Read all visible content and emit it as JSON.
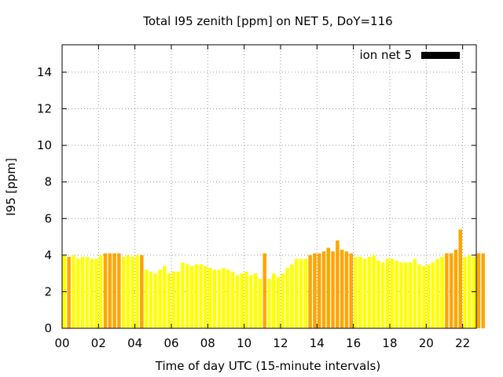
{
  "chart_data": {
    "type": "bar",
    "title": "Total I95 zenith [ppm] on NET 5, DoY=116",
    "xlabel": "Time of day UTC (15-minute intervals)",
    "ylabel": "I95 [ppm]",
    "ylim": [
      0,
      15.5
    ],
    "xlim": [
      0,
      22.75
    ],
    "x_ticks": [
      {
        "value": 0,
        "label": "00"
      },
      {
        "value": 2,
        "label": "02"
      },
      {
        "value": 4,
        "label": "04"
      },
      {
        "value": 6,
        "label": "06"
      },
      {
        "value": 8,
        "label": "08"
      },
      {
        "value": 10,
        "label": "10"
      },
      {
        "value": 12,
        "label": "12"
      },
      {
        "value": 14,
        "label": "14"
      },
      {
        "value": 16,
        "label": "16"
      },
      {
        "value": 18,
        "label": "18"
      },
      {
        "value": 20,
        "label": "20"
      },
      {
        "value": 22,
        "label": "22"
      }
    ],
    "y_ticks": [
      {
        "value": 0,
        "label": "0"
      },
      {
        "value": 2,
        "label": "2"
      },
      {
        "value": 4,
        "label": "4"
      },
      {
        "value": 6,
        "label": "6"
      },
      {
        "value": 8,
        "label": "8"
      },
      {
        "value": 10,
        "label": "10"
      },
      {
        "value": 12,
        "label": "12"
      },
      {
        "value": 14,
        "label": "14"
      }
    ],
    "grid": true,
    "legend": {
      "position": "top-right",
      "label": "ion net 5",
      "color": "#000000"
    },
    "colors": {
      "low": "#ffff00",
      "high": "#ffa500"
    },
    "interval_hours": 0.25,
    "values": [
      4.0,
      3.9,
      4.0,
      3.8,
      3.9,
      3.9,
      3.8,
      3.8,
      4.0,
      4.1,
      4.1,
      4.1,
      4.1,
      3.9,
      4.0,
      3.9,
      4.0,
      4.0,
      3.2,
      3.1,
      3.0,
      3.2,
      3.4,
      3.0,
      3.1,
      3.1,
      3.6,
      3.5,
      3.4,
      3.5,
      3.5,
      3.4,
      3.3,
      3.2,
      3.2,
      3.3,
      3.2,
      3.1,
      2.9,
      3.0,
      3.1,
      2.9,
      3.0,
      2.7,
      4.1,
      2.7,
      3.0,
      2.8,
      3.0,
      3.3,
      3.5,
      3.8,
      3.8,
      3.8,
      4.0,
      4.1,
      4.1,
      4.2,
      4.4,
      4.2,
      4.8,
      4.3,
      4.2,
      4.1,
      3.9,
      3.9,
      3.8,
      3.9,
      4.0,
      3.7,
      3.6,
      3.8,
      3.8,
      3.7,
      3.6,
      3.6,
      3.6,
      3.8,
      3.5,
      3.4,
      3.5,
      3.6,
      3.8,
      3.9,
      4.1,
      4.1,
      4.3,
      5.4,
      3.9,
      4.0,
      3.9,
      4.1,
      4.1
    ],
    "highlight": [
      false,
      true,
      false,
      false,
      false,
      false,
      false,
      false,
      false,
      true,
      true,
      true,
      true,
      false,
      false,
      false,
      false,
      true,
      false,
      false,
      false,
      false,
      false,
      false,
      false,
      false,
      false,
      false,
      false,
      false,
      false,
      false,
      false,
      false,
      false,
      false,
      false,
      false,
      false,
      false,
      false,
      false,
      false,
      false,
      true,
      false,
      false,
      false,
      false,
      false,
      false,
      false,
      false,
      false,
      true,
      true,
      true,
      true,
      true,
      true,
      true,
      true,
      true,
      true,
      false,
      false,
      false,
      false,
      false,
      false,
      false,
      false,
      false,
      false,
      false,
      false,
      false,
      false,
      false,
      false,
      false,
      false,
      false,
      false,
      true,
      true,
      true,
      true,
      false,
      false,
      false,
      true,
      true
    ]
  }
}
